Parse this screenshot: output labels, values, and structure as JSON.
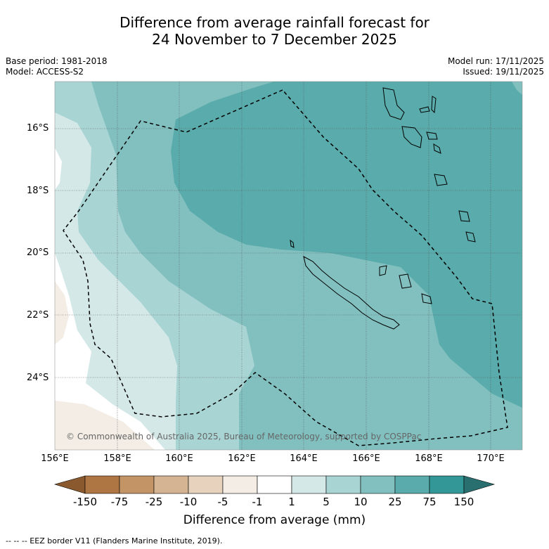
{
  "title_line1": "Difference from average rainfall forecast for",
  "title_line2": "24 November to 7 December 2025",
  "meta_left": {
    "base_period": "Base period: 1981-2018",
    "model": "Model: ACCESS-S2"
  },
  "meta_right": {
    "model_run": "Model run: 17/11/2025",
    "issued": "Issued: 19/11/2025"
  },
  "lat_labels": [
    "16°S",
    "18°S",
    "20°S",
    "22°S",
    "24°S"
  ],
  "lon_labels": [
    "156°E",
    "158°E",
    "160°E",
    "162°E",
    "164°E",
    "166°E",
    "168°E",
    "170°E"
  ],
  "copyright": "© Commonwealth of Australia 2025, Bureau of Meteorology, supported by COSPPac",
  "colorbar": {
    "title": "Difference from average (mm)",
    "ticks": [
      "-150",
      "-75",
      "-25",
      "-10",
      "-5",
      "-1",
      "1",
      "5",
      "10",
      "25",
      "75",
      "150"
    ],
    "colors": [
      "#8a5a2e",
      "#ae7642",
      "#c39566",
      "#d5b493",
      "#e6d2bd",
      "#f3ede6",
      "#ffffff",
      "#d5e8e8",
      "#a9d4d4",
      "#82c0c0",
      "#5aabab",
      "#349797",
      "#2a6f6f"
    ]
  },
  "eez_legend": "--  --  -- EEZ border V11 (Flanders Marine Institute, 2019)."
}
